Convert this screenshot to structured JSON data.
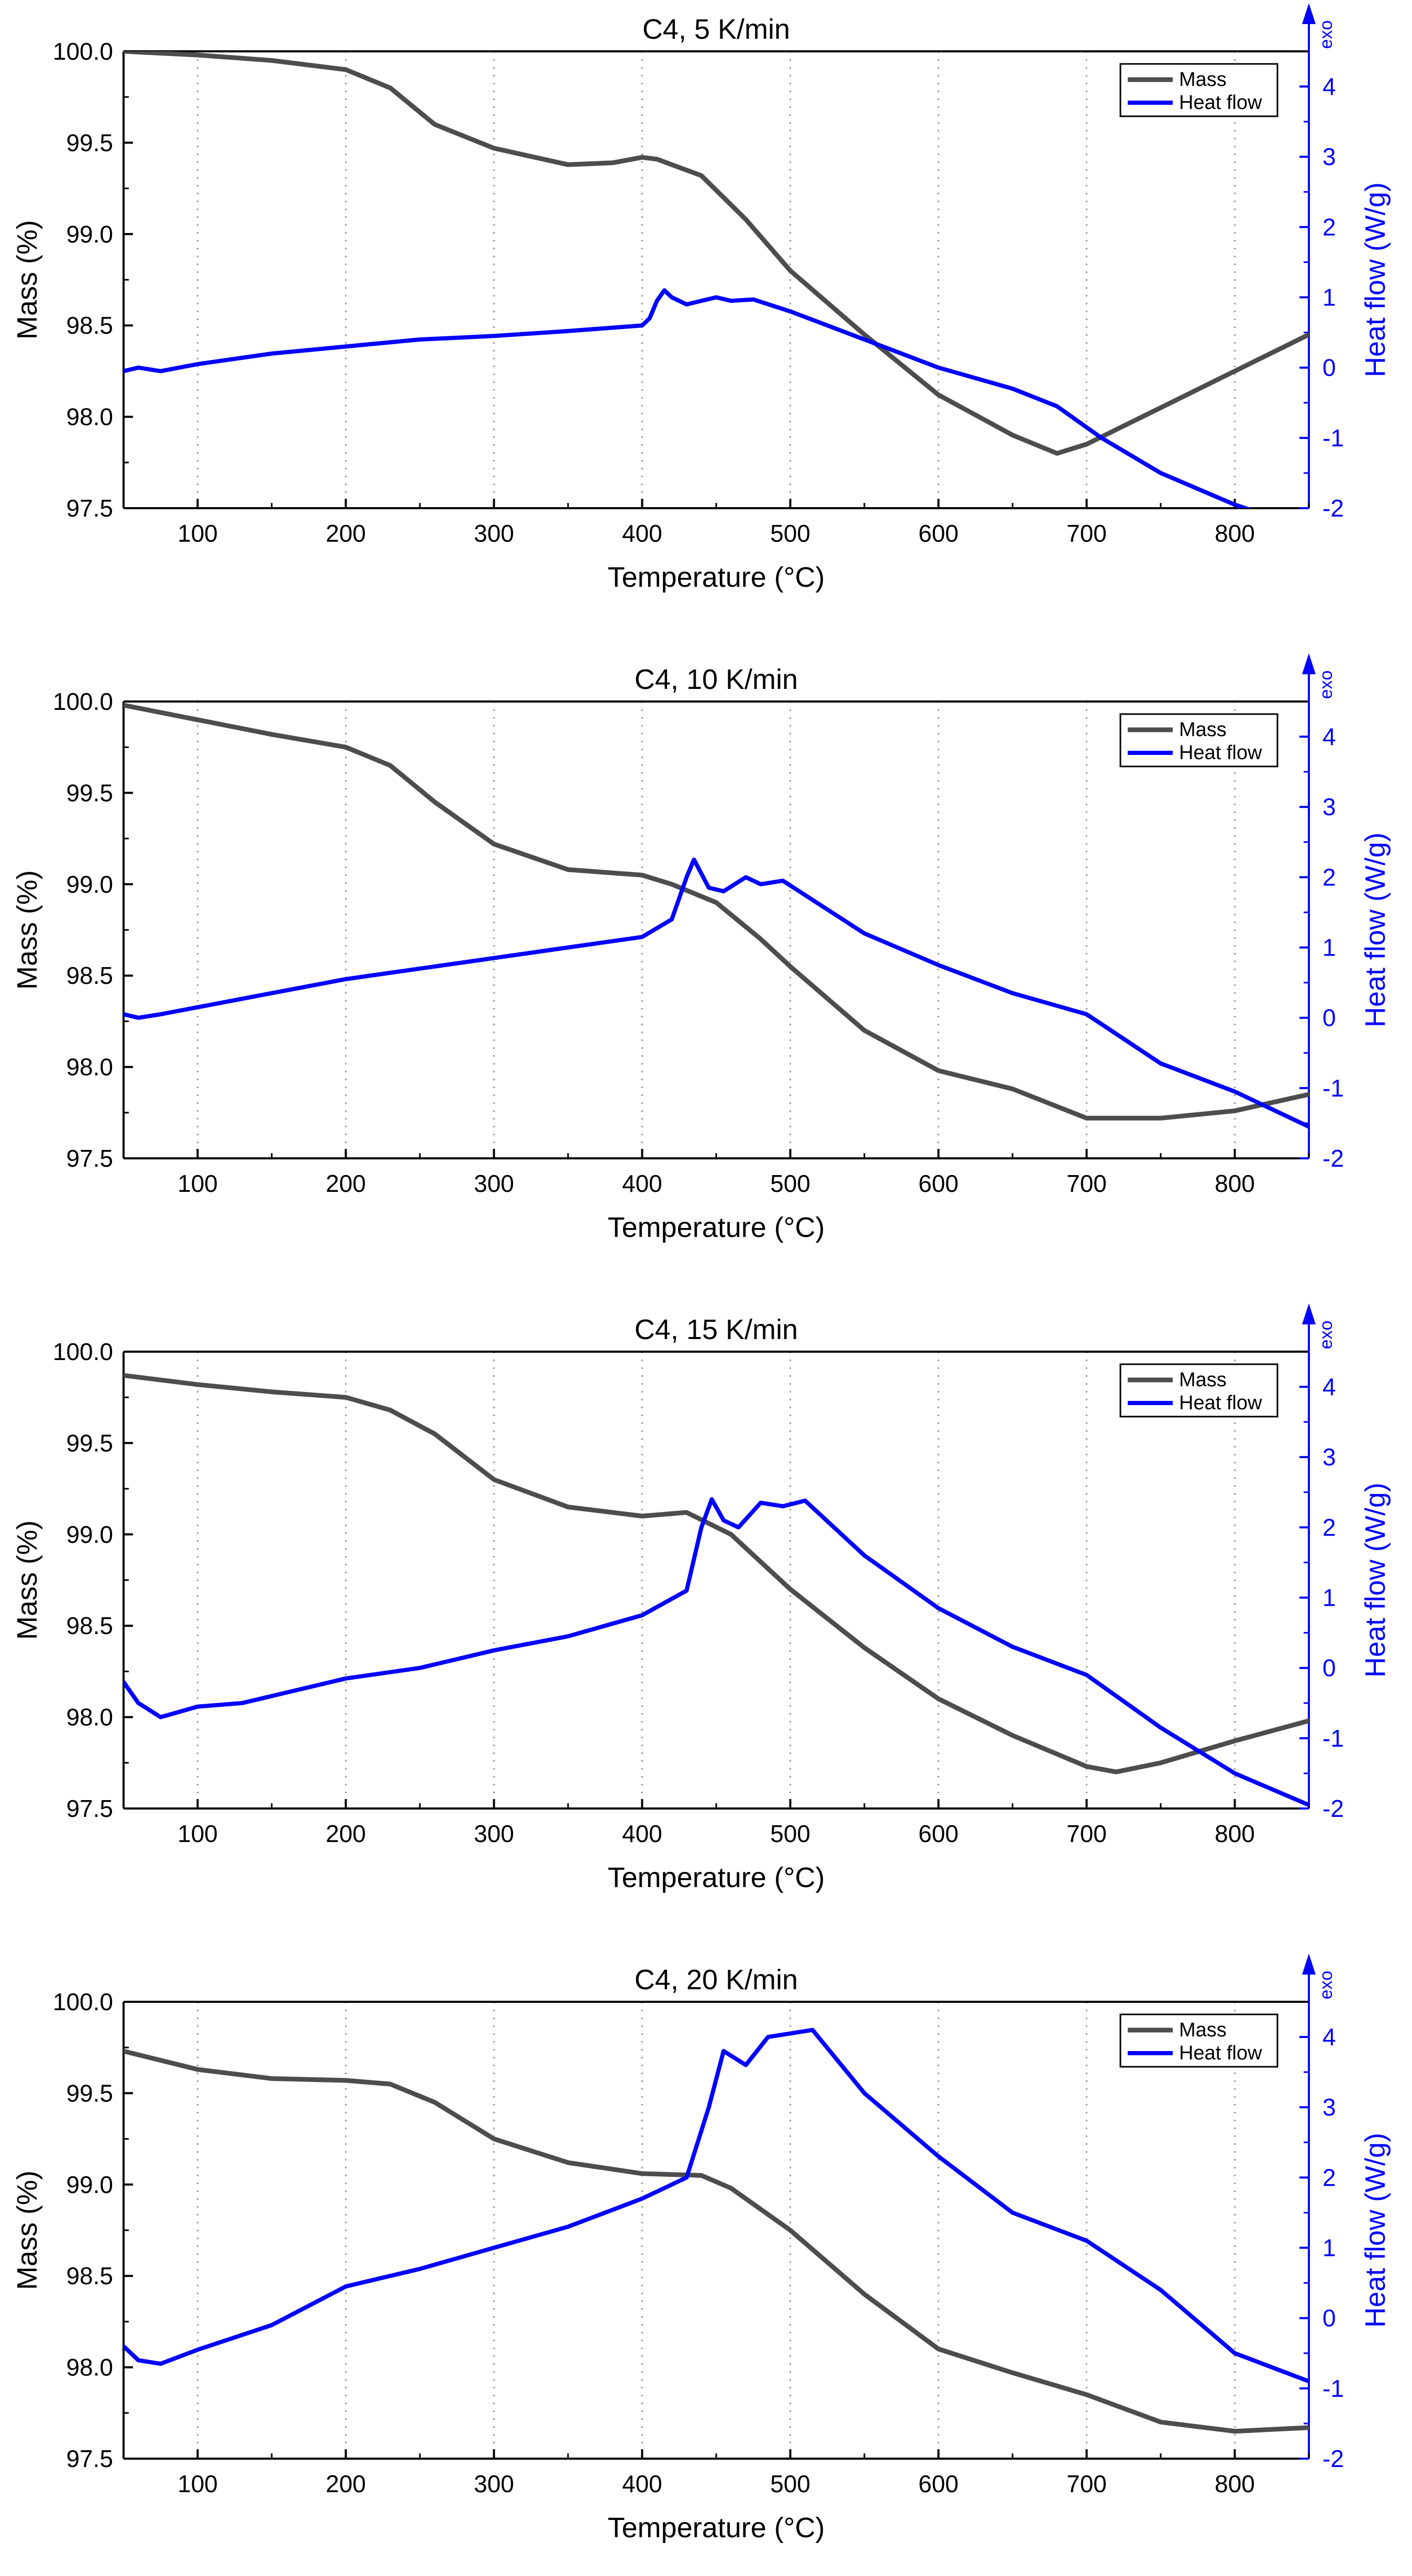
{
  "x_axis_label": "Temperature (°C)",
  "y_left_label": "Mass (%)",
  "y_right_label": "Heat flow (W/g)",
  "exo_label": "exo",
  "legend": {
    "mass": "Mass",
    "heat": "Heat flow"
  },
  "colors": {
    "mass": "#4d4d4d",
    "heat": "#0000ff",
    "axis": "#000000",
    "grid": "#999999"
  },
  "chart_data": [
    {
      "type": "line",
      "title": "C4, 5 K/min",
      "xlabel": "Temperature (°C)",
      "ylabel": "Mass (%)",
      "y2label": "Heat flow (W/g)",
      "xlim": [
        50,
        850
      ],
      "ylim": [
        97.5,
        100.0
      ],
      "y2lim": [
        -2,
        4.5
      ],
      "x_ticks": [
        100,
        200,
        300,
        400,
        500,
        600,
        700,
        800
      ],
      "y_ticks": [
        97.5,
        98.0,
        98.5,
        99.0,
        99.5,
        100.0
      ],
      "y2_ticks": [
        -2,
        -1,
        0,
        1,
        2,
        3,
        4
      ],
      "grid": "vertical dotted",
      "legend_position": "top-right",
      "series": [
        {
          "name": "Mass",
          "axis": "left",
          "x": [
            50,
            100,
            150,
            200,
            230,
            260,
            300,
            350,
            380,
            400,
            410,
            440,
            470,
            500,
            550,
            600,
            650,
            680,
            700,
            750,
            800,
            850
          ],
          "values": [
            100.0,
            99.98,
            99.95,
            99.9,
            99.8,
            99.6,
            99.47,
            99.38,
            99.39,
            99.42,
            99.41,
            99.32,
            99.08,
            98.8,
            98.45,
            98.12,
            97.9,
            97.8,
            97.85,
            98.05,
            98.25,
            98.45
          ]
        },
        {
          "name": "Heat flow",
          "axis": "right",
          "x": [
            50,
            60,
            75,
            100,
            150,
            200,
            250,
            300,
            350,
            400,
            405,
            410,
            415,
            420,
            430,
            450,
            460,
            475,
            500,
            550,
            600,
            650,
            680,
            700,
            710,
            750,
            800,
            810
          ],
          "values": [
            -0.05,
            0.0,
            -0.05,
            0.05,
            0.2,
            0.3,
            0.4,
            0.45,
            0.52,
            0.6,
            0.7,
            0.95,
            1.1,
            1.0,
            0.9,
            1.0,
            0.95,
            0.97,
            0.8,
            0.4,
            0.0,
            -0.3,
            -0.55,
            -0.85,
            -1.0,
            -1.5,
            -1.95,
            -2.02
          ]
        }
      ]
    },
    {
      "type": "line",
      "title": "C4, 10 K/min",
      "xlabel": "Temperature (°C)",
      "ylabel": "Mass (%)",
      "y2label": "Heat flow (W/g)",
      "xlim": [
        50,
        850
      ],
      "ylim": [
        97.5,
        100.0
      ],
      "y2lim": [
        -2,
        4.5
      ],
      "x_ticks": [
        100,
        200,
        300,
        400,
        500,
        600,
        700,
        800
      ],
      "y_ticks": [
        97.5,
        98.0,
        98.5,
        99.0,
        99.5,
        100.0
      ],
      "y2_ticks": [
        -2,
        -1,
        0,
        1,
        2,
        3,
        4
      ],
      "grid": "vertical dotted",
      "legend_position": "top-right",
      "series": [
        {
          "name": "Mass",
          "axis": "left",
          "x": [
            50,
            100,
            150,
            200,
            230,
            260,
            300,
            350,
            400,
            420,
            450,
            480,
            500,
            550,
            600,
            650,
            700,
            750,
            800,
            850
          ],
          "values": [
            99.98,
            99.9,
            99.82,
            99.75,
            99.65,
            99.45,
            99.22,
            99.08,
            99.05,
            99.0,
            98.9,
            98.7,
            98.55,
            98.2,
            97.98,
            97.88,
            97.72,
            97.72,
            97.76,
            97.85
          ]
        },
        {
          "name": "Heat flow",
          "axis": "right",
          "x": [
            50,
            60,
            75,
            100,
            150,
            200,
            250,
            300,
            350,
            400,
            420,
            430,
            435,
            445,
            455,
            470,
            480,
            495,
            550,
            600,
            650,
            700,
            750,
            800,
            850
          ],
          "values": [
            0.05,
            0.0,
            0.05,
            0.15,
            0.35,
            0.55,
            0.7,
            0.85,
            1.0,
            1.15,
            1.4,
            2.0,
            2.25,
            1.85,
            1.8,
            2.0,
            1.9,
            1.95,
            1.2,
            0.75,
            0.35,
            0.05,
            -0.65,
            -1.05,
            -1.55
          ]
        }
      ]
    },
    {
      "type": "line",
      "title": "C4, 15 K/min",
      "xlabel": "Temperature (°C)",
      "ylabel": "Mass (%)",
      "y2label": "Heat flow (W/g)",
      "xlim": [
        50,
        850
      ],
      "ylim": [
        97.5,
        100.0
      ],
      "y2lim": [
        -2,
        4.5
      ],
      "x_ticks": [
        100,
        200,
        300,
        400,
        500,
        600,
        700,
        800
      ],
      "y_ticks": [
        97.5,
        98.0,
        98.5,
        99.0,
        99.5,
        100.0
      ],
      "y2_ticks": [
        -2,
        -1,
        0,
        1,
        2,
        3,
        4
      ],
      "grid": "vertical dotted",
      "legend_position": "top-right",
      "series": [
        {
          "name": "Mass",
          "axis": "left",
          "x": [
            50,
            100,
            150,
            200,
            230,
            260,
            300,
            350,
            400,
            430,
            460,
            500,
            550,
            600,
            650,
            700,
            720,
            750,
            800,
            850
          ],
          "values": [
            99.87,
            99.82,
            99.78,
            99.75,
            99.68,
            99.55,
            99.3,
            99.15,
            99.1,
            99.12,
            99.0,
            98.7,
            98.38,
            98.1,
            97.9,
            97.73,
            97.7,
            97.75,
            97.87,
            97.98
          ]
        },
        {
          "name": "Heat flow",
          "axis": "right",
          "x": [
            50,
            60,
            75,
            100,
            130,
            150,
            200,
            250,
            300,
            350,
            400,
            430,
            440,
            447,
            455,
            465,
            480,
            495,
            510,
            550,
            600,
            650,
            700,
            750,
            800,
            850
          ],
          "values": [
            -0.2,
            -0.5,
            -0.7,
            -0.55,
            -0.5,
            -0.4,
            -0.15,
            0.0,
            0.25,
            0.45,
            0.75,
            1.1,
            2.0,
            2.4,
            2.1,
            2.0,
            2.35,
            2.3,
            2.38,
            1.6,
            0.85,
            0.3,
            -0.1,
            -0.85,
            -1.5,
            -1.95
          ]
        }
      ]
    },
    {
      "type": "line",
      "title": "C4, 20 K/min",
      "xlabel": "Temperature (°C)",
      "ylabel": "Mass (%)",
      "y2label": "Heat flow (W/g)",
      "xlim": [
        50,
        850
      ],
      "ylim": [
        97.5,
        100.0
      ],
      "y2lim": [
        -2,
        4.5
      ],
      "x_ticks": [
        100,
        200,
        300,
        400,
        500,
        600,
        700,
        800
      ],
      "y_ticks": [
        97.5,
        98.0,
        98.5,
        99.0,
        99.5,
        100.0
      ],
      "y2_ticks": [
        -2,
        -1,
        0,
        1,
        2,
        3,
        4
      ],
      "grid": "vertical dotted",
      "legend_position": "top-right",
      "series": [
        {
          "name": "Mass",
          "axis": "left",
          "x": [
            50,
            100,
            150,
            200,
            230,
            260,
            300,
            350,
            400,
            440,
            460,
            500,
            550,
            600,
            650,
            700,
            750,
            800,
            850
          ],
          "values": [
            99.73,
            99.63,
            99.58,
            99.57,
            99.55,
            99.45,
            99.25,
            99.12,
            99.06,
            99.05,
            98.98,
            98.75,
            98.4,
            98.1,
            97.97,
            97.85,
            97.7,
            97.65,
            97.67
          ]
        },
        {
          "name": "Heat flow",
          "axis": "right",
          "x": [
            50,
            60,
            75,
            100,
            150,
            200,
            250,
            300,
            350,
            400,
            430,
            445,
            455,
            470,
            485,
            500,
            515,
            550,
            600,
            650,
            700,
            750,
            800,
            850
          ],
          "values": [
            -0.4,
            -0.6,
            -0.65,
            -0.45,
            -0.1,
            0.45,
            0.7,
            1.0,
            1.3,
            1.7,
            2.0,
            3.0,
            3.8,
            3.6,
            4.0,
            4.05,
            4.1,
            3.2,
            2.3,
            1.5,
            1.1,
            0.4,
            -0.5,
            -0.9
          ]
        }
      ]
    }
  ]
}
